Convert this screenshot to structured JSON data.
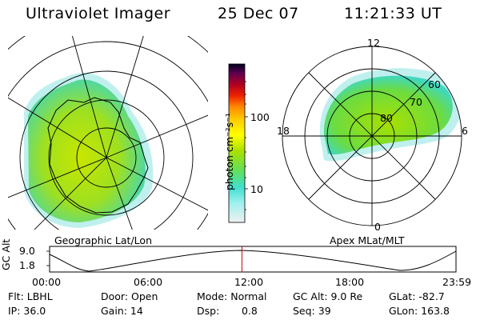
{
  "header": {
    "title": "Ultraviolet Imager",
    "date": "25 Dec 07",
    "time": "11:21:33 UT"
  },
  "left_panel": {
    "label": "Geographic Lat/Lon"
  },
  "right_panel": {
    "label": "Apex MLat/MLT",
    "lat_labels": [
      "80",
      "70",
      "60"
    ],
    "mlt_labels": {
      "top": "12",
      "bottom": "0",
      "left": "18",
      "right": "6"
    }
  },
  "colorbar": {
    "unit_label": "photon cm⁻²s⁻¹",
    "ticks": [
      "100",
      "10"
    ],
    "scale": "log",
    "colors": [
      "#f0f0f0",
      "#40e0d0",
      "#7fff00",
      "#ffff00",
      "#ff9900",
      "#cc0000",
      "#660033",
      "#000020"
    ]
  },
  "timeline": {
    "axis_label": "GC Alt",
    "y_ticks": [
      "9.0",
      "1.8"
    ],
    "x_ticks": [
      "00:00",
      "06:00",
      "12:00",
      "18:00",
      "23:59"
    ],
    "cursor_time": "11:21",
    "cursor_color": "#cc0000"
  },
  "status": {
    "flt": "Flt: LBHL",
    "ip": "IP: 36.0",
    "door": "Door: Open",
    "gain": "Gain: 14",
    "mode": "Mode: Normal",
    "dsp_label": "Dsp:",
    "dsp_value": "0.8",
    "gc_alt": "GC Alt: 9.0 Re",
    "seq": "Seq: 39",
    "glat": "GLat: -82.7",
    "glon": "GLon: 163.8"
  }
}
